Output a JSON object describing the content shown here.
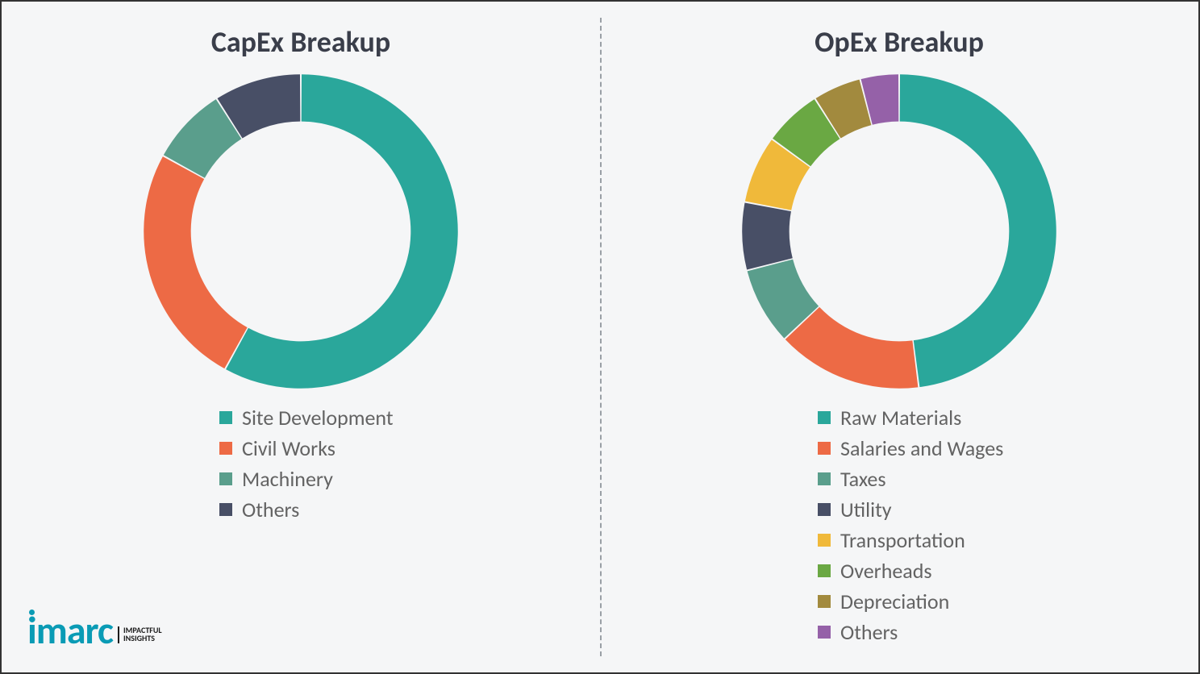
{
  "logo": {
    "word": "imarc",
    "tag_line1": "IMPACTFUL",
    "tag_line2": "INSIGHTS",
    "brand_color": "#0a9bb5"
  },
  "divider_color": "#9aa0a6",
  "background_color": "#f5f6f7",
  "border_color": "#333333",
  "capex_chart": {
    "type": "donut",
    "title": "CapEx Breakup",
    "title_fontsize": 36,
    "title_color": "#3a3e4a",
    "inner_radius_ratio": 0.7,
    "background_color": "transparent",
    "segments": [
      {
        "label": "Site Development",
        "value": 58,
        "color": "#2aa79b"
      },
      {
        "label": "Civil Works",
        "value": 25,
        "color": "#ed6a45"
      },
      {
        "label": "Machinery",
        "value": 8,
        "color": "#5a9e8c"
      },
      {
        "label": "Others",
        "value": 9,
        "color": "#484f66"
      }
    ],
    "legend_fontsize": 26,
    "legend_color": "#636363",
    "swatch_size": 16
  },
  "opex_chart": {
    "type": "donut",
    "title": "OpEx Breakup",
    "title_fontsize": 36,
    "title_color": "#3a3e4a",
    "inner_radius_ratio": 0.7,
    "background_color": "transparent",
    "segments": [
      {
        "label": "Raw Materials",
        "value": 48,
        "color": "#2aa79b"
      },
      {
        "label": "Salaries and Wages",
        "value": 15,
        "color": "#ed6a45"
      },
      {
        "label": "Taxes",
        "value": 8,
        "color": "#5a9e8c"
      },
      {
        "label": "Utility",
        "value": 7,
        "color": "#484f66"
      },
      {
        "label": "Transportation",
        "value": 7,
        "color": "#f0b93a"
      },
      {
        "label": "Overheads",
        "value": 6,
        "color": "#6aa843"
      },
      {
        "label": "Depreciation",
        "value": 5,
        "color": "#a28a3e"
      },
      {
        "label": "Others",
        "value": 4,
        "color": "#9561a8"
      }
    ],
    "legend_fontsize": 26,
    "legend_color": "#636363",
    "swatch_size": 16
  }
}
